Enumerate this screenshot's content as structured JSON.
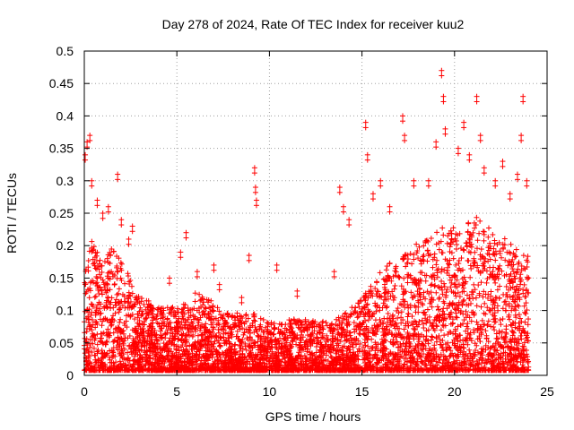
{
  "chart_data": {
    "type": "scatter",
    "title": "Day 278 of 2024, Rate Of TEC Index for receiver kuu2",
    "xlabel": "GPS time / hours",
    "ylabel": "ROTI / TECUs",
    "xlim": [
      0,
      25
    ],
    "ylim": [
      0,
      0.5
    ],
    "xticks": [
      0,
      5,
      10,
      15,
      20,
      25
    ],
    "yticks": [
      0,
      0.05,
      0.1,
      0.15,
      0.2,
      0.25,
      0.3,
      0.35,
      0.4,
      0.45,
      0.5
    ],
    "grid": true,
    "marker": "plus",
    "color": "#ff0000",
    "x_data_range": [
      0,
      24
    ],
    "envelope": {
      "x": [
        0,
        0.5,
        1,
        1.5,
        2,
        2.5,
        3,
        4,
        5,
        6,
        7,
        8,
        9,
        10,
        11,
        12,
        13,
        14,
        15,
        16,
        17,
        18,
        19,
        20,
        21,
        22,
        23,
        24
      ],
      "typical_max": [
        0.15,
        0.22,
        0.16,
        0.2,
        0.18,
        0.15,
        0.12,
        0.1,
        0.1,
        0.12,
        0.11,
        0.09,
        0.09,
        0.08,
        0.08,
        0.08,
        0.08,
        0.09,
        0.12,
        0.16,
        0.18,
        0.2,
        0.22,
        0.22,
        0.24,
        0.22,
        0.2,
        0.18
      ]
    },
    "outliers": [
      [
        0.05,
        0.34
      ],
      [
        0.15,
        0.36
      ],
      [
        0.3,
        0.37
      ],
      [
        0.4,
        0.3
      ],
      [
        0.7,
        0.27
      ],
      [
        1.0,
        0.25
      ],
      [
        1.3,
        0.26
      ],
      [
        1.8,
        0.31
      ],
      [
        2.0,
        0.24
      ],
      [
        2.4,
        0.21
      ],
      [
        2.6,
        0.23
      ],
      [
        4.6,
        0.15
      ],
      [
        5.2,
        0.19
      ],
      [
        5.5,
        0.22
      ],
      [
        6.1,
        0.16
      ],
      [
        7.0,
        0.17
      ],
      [
        7.3,
        0.14
      ],
      [
        8.5,
        0.12
      ],
      [
        8.9,
        0.185
      ],
      [
        9.2,
        0.32
      ],
      [
        9.25,
        0.29
      ],
      [
        9.3,
        0.27
      ],
      [
        10.4,
        0.17
      ],
      [
        11.5,
        0.13
      ],
      [
        13.5,
        0.16
      ],
      [
        13.8,
        0.29
      ],
      [
        14.0,
        0.26
      ],
      [
        14.3,
        0.24
      ],
      [
        15.2,
        0.39
      ],
      [
        15.3,
        0.34
      ],
      [
        15.6,
        0.28
      ],
      [
        16.0,
        0.3
      ],
      [
        16.5,
        0.26
      ],
      [
        17.2,
        0.4
      ],
      [
        17.3,
        0.37
      ],
      [
        17.8,
        0.3
      ],
      [
        18.6,
        0.3
      ],
      [
        19.0,
        0.36
      ],
      [
        19.3,
        0.47
      ],
      [
        19.4,
        0.43
      ],
      [
        19.5,
        0.38
      ],
      [
        20.2,
        0.35
      ],
      [
        20.5,
        0.39
      ],
      [
        20.8,
        0.34
      ],
      [
        21.2,
        0.43
      ],
      [
        21.4,
        0.37
      ],
      [
        21.6,
        0.32
      ],
      [
        22.2,
        0.3
      ],
      [
        22.6,
        0.33
      ],
      [
        23.0,
        0.28
      ],
      [
        23.4,
        0.31
      ],
      [
        23.6,
        0.37
      ],
      [
        23.7,
        0.43
      ],
      [
        23.9,
        0.3
      ]
    ]
  }
}
